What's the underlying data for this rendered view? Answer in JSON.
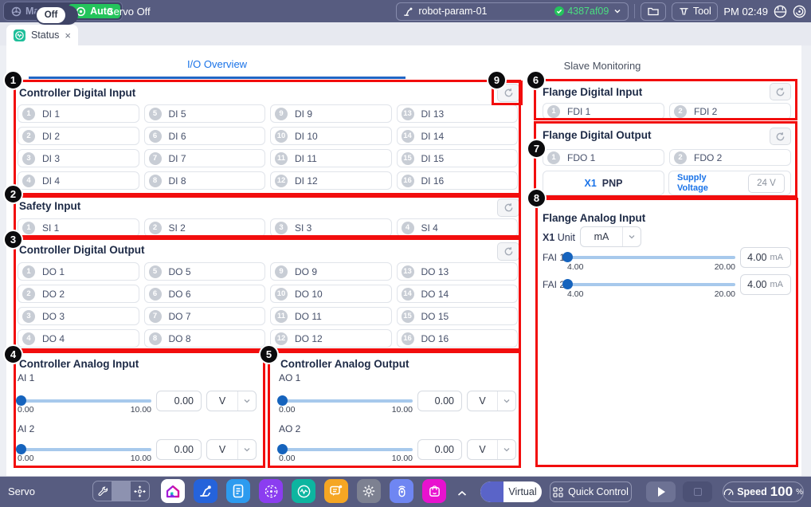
{
  "topbar": {
    "manual": "Manual",
    "auto": "Auto",
    "servo_status": "Servo Off",
    "param_name": "robot-param-01",
    "param_hash": "4387af09",
    "tool": "Tool",
    "time": "PM 02:49"
  },
  "tab": {
    "status": "Status",
    "close": "×"
  },
  "io": {
    "tab_label": "I/O Overview",
    "cdi": {
      "title": "Controller Digital Input",
      "items": [
        {
          "num": "1",
          "label": "DI 1"
        },
        {
          "num": "2",
          "label": "DI 2"
        },
        {
          "num": "3",
          "label": "DI 3"
        },
        {
          "num": "4",
          "label": "DI 4"
        },
        {
          "num": "5",
          "label": "DI 5"
        },
        {
          "num": "6",
          "label": "DI 6"
        },
        {
          "num": "7",
          "label": "DI 7"
        },
        {
          "num": "8",
          "label": "DI 8"
        },
        {
          "num": "9",
          "label": "DI 9"
        },
        {
          "num": "10",
          "label": "DI 10"
        },
        {
          "num": "11",
          "label": "DI 11"
        },
        {
          "num": "12",
          "label": "DI 12"
        },
        {
          "num": "13",
          "label": "DI 13"
        },
        {
          "num": "14",
          "label": "DI 14"
        },
        {
          "num": "15",
          "label": "DI 15"
        },
        {
          "num": "16",
          "label": "DI 16"
        }
      ]
    },
    "si": {
      "title": "Safety Input",
      "items": [
        {
          "num": "1",
          "label": "SI 1"
        },
        {
          "num": "2",
          "label": "SI 2"
        },
        {
          "num": "3",
          "label": "SI 3"
        },
        {
          "num": "4",
          "label": "SI 4"
        }
      ]
    },
    "cdo": {
      "title": "Controller Digital Output",
      "items": [
        {
          "num": "1",
          "label": "DO 1"
        },
        {
          "num": "2",
          "label": "DO 2"
        },
        {
          "num": "3",
          "label": "DO 3"
        },
        {
          "num": "4",
          "label": "DO 4"
        },
        {
          "num": "5",
          "label": "DO 5"
        },
        {
          "num": "6",
          "label": "DO 6"
        },
        {
          "num": "7",
          "label": "DO 7"
        },
        {
          "num": "8",
          "label": "DO 8"
        },
        {
          "num": "9",
          "label": "DO 9"
        },
        {
          "num": "10",
          "label": "DO 10"
        },
        {
          "num": "11",
          "label": "DO 11"
        },
        {
          "num": "12",
          "label": "DO 12"
        },
        {
          "num": "13",
          "label": "DO 13"
        },
        {
          "num": "14",
          "label": "DO 14"
        },
        {
          "num": "15",
          "label": "DO 15"
        },
        {
          "num": "16",
          "label": "DO 16"
        }
      ]
    },
    "cai": {
      "title": "Controller Analog Input",
      "channels": [
        {
          "label": "AI 1",
          "min": "0.00",
          "max": "10.00",
          "value": "0.00",
          "unit": "V"
        },
        {
          "label": "AI 2",
          "min": "0.00",
          "max": "10.00",
          "value": "0.00",
          "unit": "V"
        }
      ]
    },
    "cao": {
      "title": "Controller Analog Output",
      "channels": [
        {
          "label": "AO 1",
          "min": "0.00",
          "max": "10.00",
          "value": "0.00",
          "unit": "V"
        },
        {
          "label": "AO 2",
          "min": "0.00",
          "max": "10.00",
          "value": "0.00",
          "unit": "V"
        }
      ]
    }
  },
  "slave": {
    "tab_label": "Slave Monitoring",
    "fdi": {
      "title": "Flange Digital Input",
      "items": [
        {
          "num": "1",
          "label": "FDI 1"
        },
        {
          "num": "2",
          "label": "FDI 2"
        }
      ]
    },
    "fdo": {
      "title": "Flange Digital Output",
      "items": [
        {
          "num": "1",
          "label": "FDO 1"
        },
        {
          "num": "2",
          "label": "FDO 2"
        }
      ],
      "x1": "X1",
      "x1_mode": "PNP",
      "supply_line1": "Supply",
      "supply_line2": "Voltage",
      "supply_value": "24 V"
    },
    "fai": {
      "title": "Flange Analog Input",
      "x1": "X1",
      "unit_label": "Unit",
      "unit_value": "mA",
      "channels": [
        {
          "label": "FAI 1",
          "min": "4.00",
          "max": "20.00",
          "value": "4.00",
          "unit": "mA"
        },
        {
          "label": "FAI 2",
          "min": "4.00",
          "max": "20.00",
          "value": "4.00",
          "unit": "mA"
        }
      ]
    }
  },
  "bottombar": {
    "servo": "Servo",
    "servo_state": "Off",
    "virtual": "Virtual",
    "quick_control": "Quick Control",
    "speed_label": "Speed",
    "speed_value": "100",
    "speed_unit": "%"
  },
  "annotations": [
    "1",
    "2",
    "3",
    "4",
    "5",
    "6",
    "7",
    "8",
    "9"
  ],
  "colors": {
    "accent_blue": "#1a73e8",
    "annotation_red": "#f20d0d",
    "auto_green": "#24c45c",
    "hash_green": "#4ade80",
    "bar_slate": "#575c80"
  }
}
